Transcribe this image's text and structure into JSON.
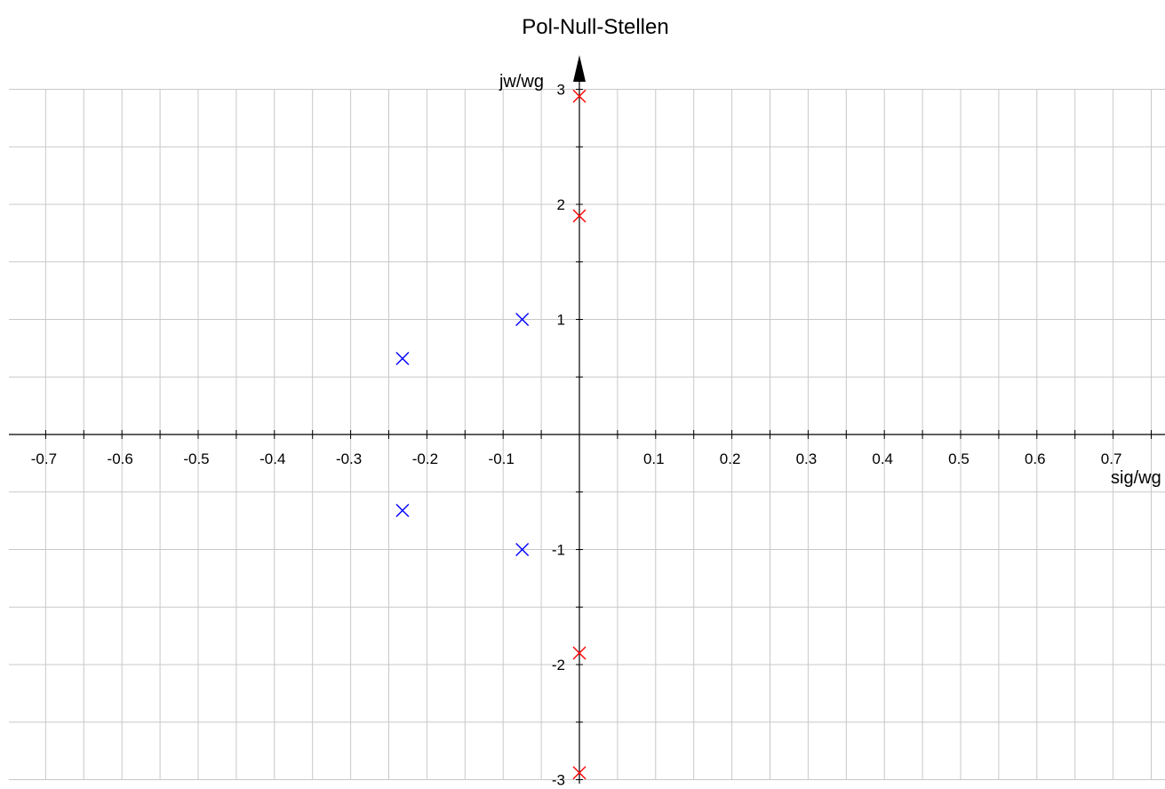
{
  "chart_data": {
    "type": "scatter",
    "title": "Pol-Null-Stellen",
    "xlabel": "sig/wg",
    "ylabel": "jw/wg",
    "xlim": [
      -0.76,
      0.75
    ],
    "ylim": [
      -3.05,
      3.0
    ],
    "x_ticks": [
      -0.7,
      -0.6,
      -0.5,
      -0.4,
      -0.3,
      -0.2,
      -0.1,
      0.1,
      0.2,
      0.3,
      0.4,
      0.5,
      0.6,
      0.7
    ],
    "x_tick_labels": [
      "-0.7",
      "-0.6",
      "-0.5",
      "-0.4",
      "-0.3",
      "-0.2",
      "-0.1",
      "0.1",
      "0.2",
      "0.3",
      "0.4",
      "0.5",
      "0.6",
      "0.7"
    ],
    "y_ticks": [
      -3,
      -2,
      -1,
      1,
      2,
      3
    ],
    "y_tick_labels": [
      "-3",
      "-2",
      "-1",
      "1",
      "2",
      "3"
    ],
    "grid": true,
    "series": [
      {
        "color": "#0000ff",
        "marker": "x",
        "points": [
          {
            "x": -0.075,
            "y": 1.0
          },
          {
            "x": -0.075,
            "y": -1.0
          },
          {
            "x": -0.232,
            "y": 0.66
          },
          {
            "x": -0.232,
            "y": -0.66
          }
        ]
      },
      {
        "color": "#ff0000",
        "marker": "x",
        "points": [
          {
            "x": 0.0,
            "y": 2.94
          },
          {
            "x": 0.0,
            "y": 1.9
          },
          {
            "x": 0.0,
            "y": -1.9
          },
          {
            "x": 0.0,
            "y": -2.94
          }
        ]
      }
    ]
  }
}
